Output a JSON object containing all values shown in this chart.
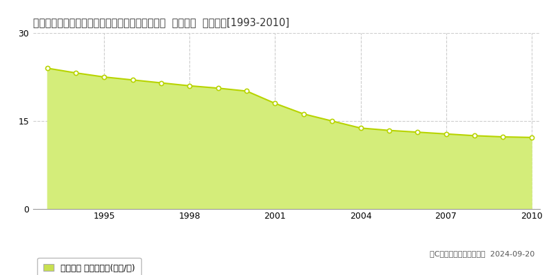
{
  "title": "愛知県知多郡南知多町大字豊浜字中之浦２５番外  公示地価  地価推移[1993-2010]",
  "years": [
    1993,
    1994,
    1995,
    1996,
    1997,
    1998,
    1999,
    2000,
    2001,
    2002,
    2003,
    2004,
    2005,
    2006,
    2007,
    2008,
    2009,
    2010
  ],
  "values": [
    24.0,
    23.2,
    22.5,
    22.0,
    21.5,
    21.0,
    20.6,
    20.1,
    18.0,
    16.2,
    15.0,
    13.8,
    13.4,
    13.1,
    12.8,
    12.5,
    12.3,
    12.2
  ],
  "ylim": [
    0,
    30
  ],
  "yticks": [
    0,
    15,
    30
  ],
  "xticks": [
    1995,
    1998,
    2001,
    2004,
    2007,
    2010
  ],
  "fill_color": "#d4ed7a",
  "line_color": "#b8d400",
  "marker_color": "#ffffff",
  "marker_edge_color": "#b8d400",
  "grid_color": "#cccccc",
  "bg_color": "#ffffff",
  "legend_label": "公示地価 平均坪単価(万円/坪)",
  "legend_marker_color": "#c8e050",
  "copyright_text": "（C）土地価格ドットコム  2024-09-20",
  "title_fontsize": 10.5,
  "axis_fontsize": 9,
  "legend_fontsize": 9,
  "copyright_fontsize": 8
}
